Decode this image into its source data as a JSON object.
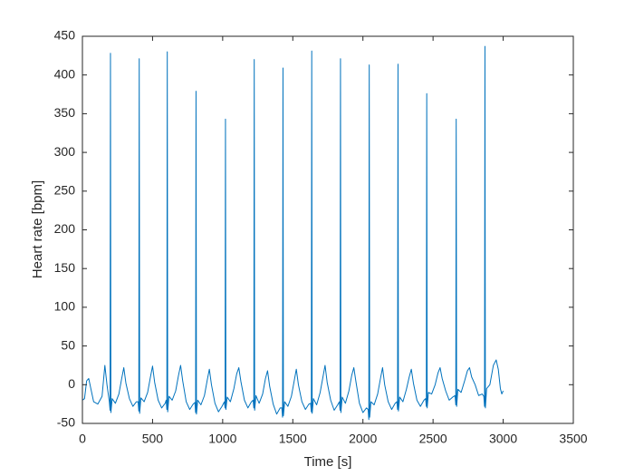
{
  "chart_data": {
    "type": "line",
    "xlabel": "Time [s]",
    "ylabel": "Heart rate [bpm]",
    "xlim": [
      0,
      3500
    ],
    "xticks": [
      0,
      500,
      1000,
      1500,
      2000,
      2500,
      3000,
      3500
    ],
    "ylim": [
      -50,
      450
    ],
    "yticks": [
      -50,
      0,
      50,
      100,
      150,
      200,
      250,
      300,
      350,
      400,
      450
    ],
    "grid": false,
    "x": [
      0,
      15,
      30,
      45,
      60,
      80,
      110,
      140,
      160,
      175,
      192,
      197,
      200,
      203,
      212,
      235,
      260,
      280,
      295,
      310,
      335,
      360,
      385,
      397,
      402,
      405,
      408,
      417,
      440,
      465,
      485,
      500,
      515,
      540,
      565,
      590,
      597,
      602,
      605,
      608,
      617,
      640,
      665,
      685,
      700,
      715,
      740,
      765,
      790,
      802,
      807,
      810,
      813,
      822,
      845,
      870,
      890,
      905,
      920,
      945,
      970,
      995,
      1012,
      1017,
      1020,
      1023,
      1032,
      1055,
      1080,
      1100,
      1115,
      1130,
      1155,
      1180,
      1205,
      1217,
      1222,
      1225,
      1228,
      1237,
      1260,
      1285,
      1305,
      1320,
      1335,
      1360,
      1385,
      1410,
      1422,
      1427,
      1430,
      1433,
      1442,
      1465,
      1490,
      1510,
      1525,
      1540,
      1565,
      1590,
      1615,
      1627,
      1632,
      1635,
      1638,
      1647,
      1670,
      1695,
      1715,
      1730,
      1745,
      1770,
      1795,
      1820,
      1832,
      1837,
      1840,
      1843,
      1852,
      1875,
      1900,
      1920,
      1935,
      1950,
      1975,
      2000,
      2025,
      2037,
      2042,
      2045,
      2048,
      2057,
      2080,
      2105,
      2125,
      2140,
      2155,
      2180,
      2205,
      2230,
      2242,
      2247,
      2250,
      2253,
      2262,
      2285,
      2310,
      2330,
      2345,
      2360,
      2385,
      2410,
      2435,
      2447,
      2452,
      2455,
      2458,
      2467,
      2490,
      2515,
      2535,
      2550,
      2565,
      2590,
      2615,
      2640,
      2657,
      2662,
      2665,
      2668,
      2677,
      2700,
      2725,
      2745,
      2760,
      2775,
      2800,
      2825,
      2850,
      2862,
      2867,
      2870,
      2873,
      2882,
      2905,
      2930,
      2950,
      2965,
      2980,
      2990,
      3000
    ],
    "series": [
      {
        "name": "Heart rate",
        "color": "#0072bd",
        "values": [
          -20,
          -18,
          5,
          8,
          -5,
          -22,
          -25,
          -15,
          25,
          0,
          -22,
          -33,
          428,
          -36,
          -18,
          -24,
          -12,
          8,
          22,
          2,
          -18,
          -28,
          -22,
          -22,
          -34,
          421,
          -37,
          -17,
          -22,
          -10,
          10,
          24,
          3,
          -20,
          -30,
          -24,
          -20,
          -32,
          430,
          -35,
          -15,
          -20,
          -8,
          12,
          25,
          5,
          -22,
          -32,
          -25,
          -23,
          -36,
          379,
          -38,
          -20,
          -26,
          -14,
          6,
          20,
          0,
          -24,
          -35,
          -28,
          -22,
          -30,
          343,
          -32,
          -16,
          -22,
          -5,
          14,
          22,
          4,
          -20,
          -30,
          -22,
          -20,
          -30,
          420,
          -33,
          -14,
          -24,
          -12,
          8,
          18,
          -2,
          -25,
          -38,
          -30,
          -30,
          -42,
          409,
          -40,
          -22,
          -28,
          -15,
          5,
          20,
          0,
          -22,
          -32,
          -25,
          -24,
          -35,
          431,
          -37,
          -18,
          -26,
          -10,
          10,
          25,
          3,
          -20,
          -33,
          -26,
          -22,
          -33,
          421,
          -36,
          -16,
          -24,
          -8,
          12,
          22,
          4,
          -24,
          -36,
          -30,
          -32,
          -45,
          413,
          -42,
          -22,
          -26,
          -12,
          8,
          22,
          0,
          -22,
          -32,
          -24,
          -22,
          -32,
          414,
          -34,
          -16,
          -22,
          -6,
          10,
          20,
          2,
          -20,
          -28,
          -20,
          -18,
          -28,
          376,
          -30,
          -10,
          -12,
          0,
          15,
          22,
          8,
          -8,
          -20,
          -16,
          -14,
          -26,
          343,
          -28,
          -6,
          -10,
          5,
          18,
          22,
          10,
          0,
          -14,
          -12,
          -15,
          -28,
          437,
          -30,
          -5,
          0,
          25,
          32,
          20,
          -5,
          -12,
          -8
        ]
      }
    ]
  }
}
